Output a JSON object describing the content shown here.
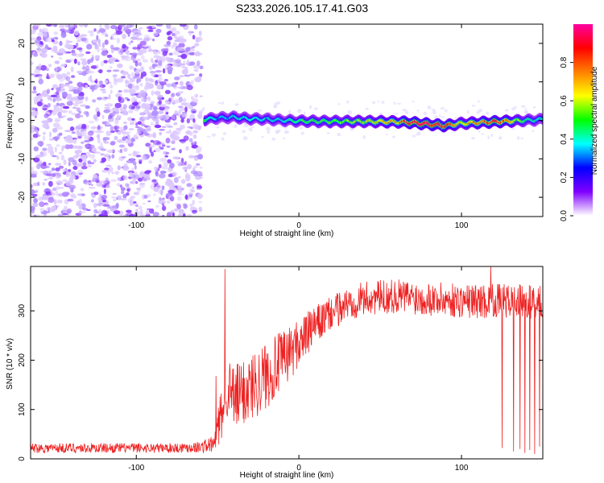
{
  "title": "S233.2026.105.17.41.G03",
  "chart_data": [
    {
      "type": "heatmap",
      "xlabel": "Height of straight line (km)",
      "ylabel": "Frequency (Hz)",
      "xlim": [
        -165,
        150
      ],
      "ylim": [
        -25,
        25
      ],
      "x_ticks": [
        -100,
        0,
        100
      ],
      "y_ticks": [
        -20,
        -10,
        0,
        10,
        20
      ],
      "colorbar": {
        "label": "Normalized spectral amplitude",
        "range": [
          0,
          1
        ],
        "ticks": [
          0.0,
          0.2,
          0.4,
          0.6,
          0.8
        ],
        "colors": [
          "#ffffff",
          "#8000ff",
          "#0000ff",
          "#00ffff",
          "#00ff00",
          "#ffff00",
          "#ff8000",
          "#ff0000",
          "#ff00a0"
        ]
      },
      "noise_region_x": [
        -165,
        -60
      ],
      "signal_track": {
        "x": [
          -58,
          -50,
          -40,
          -30,
          -20,
          -10,
          0,
          20,
          40,
          60,
          70,
          80,
          90,
          100,
          120,
          140,
          150
        ],
        "frequency": [
          0.2,
          0.6,
          0.8,
          0.4,
          0.3,
          0.0,
          -0.2,
          -0.3,
          -0.3,
          -0.4,
          -0.6,
          -1.0,
          -1.4,
          -0.8,
          -0.4,
          0.0,
          0.2
        ],
        "peak_amplitude": [
          0.45,
          0.3,
          0.35,
          0.35,
          0.35,
          0.35,
          0.45,
          0.5,
          0.55,
          0.7,
          0.95,
          0.95,
          0.9,
          0.6,
          0.9,
          0.45,
          0.35
        ]
      }
    },
    {
      "type": "line",
      "xlabel": "Height of straight line (km)",
      "ylabel": "SNR (10 * v/v)",
      "xlim": [
        -165,
        150
      ],
      "ylim": [
        0,
        390
      ],
      "x_ticks": [
        -100,
        0,
        100
      ],
      "y_ticks": [
        0,
        100,
        200,
        300
      ],
      "color": "#ee2222",
      "x": [
        -165,
        -140,
        -120,
        -100,
        -80,
        -60,
        -52,
        -50,
        -46,
        -45,
        -40,
        -30,
        -20,
        -10,
        0,
        10,
        20,
        30,
        40,
        60,
        80,
        100,
        120,
        150
      ],
      "mean": [
        22,
        22,
        22,
        22,
        22,
        24,
        30,
        60,
        110,
        150,
        120,
        145,
        170,
        200,
        235,
        270,
        295,
        315,
        325,
        330,
        325,
        320,
        320,
        318
      ],
      "spread": [
        10,
        10,
        10,
        10,
        10,
        12,
        20,
        40,
        60,
        60,
        70,
        70,
        70,
        60,
        50,
        40,
        35,
        35,
        35,
        35,
        35,
        35,
        35,
        35
      ],
      "spikes": [
        {
          "x": -45.5,
          "y": 385
        },
        {
          "x": -51,
          "y": 168
        },
        {
          "x": 118,
          "y": 392
        },
        {
          "x": 125,
          "y": 22
        },
        {
          "x": 132,
          "y": 15
        },
        {
          "x": 136,
          "y": 20
        },
        {
          "x": 139,
          "y": 12
        },
        {
          "x": 142,
          "y": 18
        },
        {
          "x": 145,
          "y": 10
        },
        {
          "x": 148,
          "y": 25
        }
      ]
    }
  ]
}
